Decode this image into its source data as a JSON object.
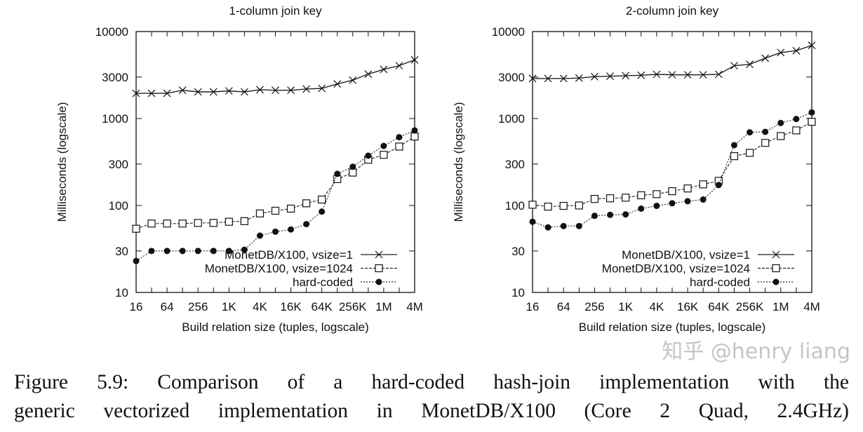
{
  "chart_data": [
    {
      "type": "line",
      "title": "1-column join key",
      "xlabel": "Build relation size (tuples, logscale)",
      "ylabel": "Milliseconds (logscale)",
      "x_scale": "log2",
      "y_scale": "log10",
      "x": [
        16,
        32,
        64,
        128,
        256,
        512,
        1024,
        2048,
        4096,
        8192,
        16384,
        32768,
        65536,
        131072,
        262144,
        524288,
        1048576,
        2097152,
        4194304
      ],
      "xticks": [
        "16",
        "64",
        "256",
        "1K",
        "4K",
        "16K",
        "64K",
        "256K",
        "1M",
        "4M"
      ],
      "yticks": [
        10,
        30,
        100,
        300,
        1000,
        3000,
        10000
      ],
      "ylim": [
        10,
        10000
      ],
      "legend": "bottom-right",
      "grid": false,
      "series": [
        {
          "name": "MonetDB/X100, vsize=1",
          "marker": "cross",
          "line": "solid",
          "values": [
            1950,
            1950,
            1950,
            2115,
            2025,
            2025,
            2077,
            2025,
            2142,
            2115,
            2115,
            2182,
            2222,
            2500,
            2760,
            3243,
            3670,
            4053,
            4730
          ]
        },
        {
          "name": "MonetDB/X100, vsize=1024",
          "marker": "open-square",
          "line": "dashed",
          "values": [
            54,
            62,
            62,
            62,
            63,
            63,
            65,
            66,
            81,
            87,
            92,
            106,
            117,
            201,
            239,
            336,
            383,
            476,
            621
          ]
        },
        {
          "name": "hard-coded",
          "marker": "filled-circle",
          "line": "dotted",
          "values": [
            23,
            30,
            30,
            30,
            30,
            30,
            30,
            31,
            45,
            50,
            53,
            61,
            85,
            231,
            279,
            374,
            484,
            610,
            730
          ]
        }
      ]
    },
    {
      "type": "line",
      "title": "2-column join key",
      "xlabel": "Build relation size (tuples, logscale)",
      "ylabel": "Milliseconds (logscale)",
      "x_scale": "log2",
      "y_scale": "log10",
      "x": [
        16,
        32,
        64,
        128,
        256,
        512,
        1024,
        2048,
        4096,
        8192,
        16384,
        32768,
        65536,
        131072,
        262144,
        524288,
        1048576,
        2097152,
        4194304
      ],
      "xticks": [
        "16",
        "64",
        "256",
        "1K",
        "4K",
        "16K",
        "64K",
        "256K",
        "1M",
        "4M"
      ],
      "yticks": [
        10,
        30,
        100,
        300,
        1000,
        3000,
        10000
      ],
      "ylim": [
        10,
        10000
      ],
      "legend": "bottom-right",
      "grid": false,
      "series": [
        {
          "name": "MonetDB/X100, vsize=1",
          "marker": "cross",
          "line": "solid",
          "values": [
            2883,
            2883,
            2883,
            2917,
            3030,
            3067,
            3105,
            3144,
            3222,
            3185,
            3185,
            3185,
            3222,
            4053,
            4206,
            4943,
            5734,
            6026,
            6940
          ]
        },
        {
          "name": "MonetDB/X100, vsize=1024",
          "marker": "open-square",
          "line": "dashed",
          "values": [
            102,
            97,
            99,
            100,
            119,
            121,
            123,
            131,
            135,
            146,
            157,
            175,
            192,
            369,
            403,
            525,
            628,
            730,
            917
          ]
        },
        {
          "name": "hard-coded",
          "marker": "filled-circle",
          "line": "dotted",
          "values": [
            65,
            56,
            58,
            58,
            76,
            78,
            79,
            92,
            99,
            106,
            112,
            117,
            172,
            494,
            694,
            703,
            889,
            988,
            1175
          ]
        }
      ]
    }
  ],
  "caption": {
    "line1": "Figure 5.9: Comparison of a hard-coded hash-join implementation with the",
    "line2": "generic vectorized implementation in MonetDB/X100 (Core 2 Quad, 2.4GHz)"
  },
  "watermark": "知乎 @henry liang"
}
